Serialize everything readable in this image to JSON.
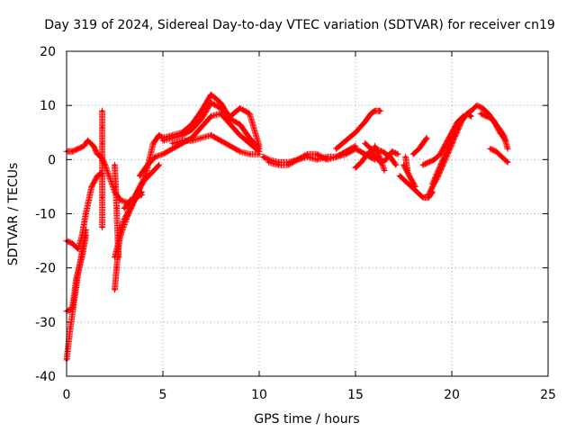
{
  "chart_data": {
    "type": "scatter",
    "title": "Day 319 of 2024, Sidereal Day-to-day VTEC variation (SDTVAR) for receiver cn19",
    "xlabel": "GPS time / hours",
    "ylabel": "SDTVAR / TECUs",
    "xlim": [
      0,
      25
    ],
    "ylim": [
      -40,
      20
    ],
    "xticks": [
      0,
      5,
      10,
      15,
      20,
      25
    ],
    "yticks": [
      -40,
      -30,
      -20,
      -10,
      0,
      10,
      20
    ],
    "grid": true,
    "marker": "+",
    "series_color": "#ff0000",
    "series": [
      {
        "name": "trace-1",
        "x": [
          0.0,
          0.3,
          0.6,
          0.9,
          1.1,
          1.4,
          1.6,
          1.8,
          2.0,
          2.2,
          2.5,
          2.8,
          3.2
        ],
        "y": [
          1.5,
          1.5,
          2.0,
          2.5,
          3.5,
          2.5,
          1.0,
          0.5,
          -1.0,
          -3.0,
          -6.0,
          -7.5,
          -8.0
        ]
      },
      {
        "name": "trace-2",
        "x": [
          0.0,
          0.3,
          0.6,
          0.8,
          1.0,
          1.3,
          1.6,
          1.8
        ],
        "y": [
          -15.0,
          -15.5,
          -16.5,
          -14.0,
          -10.0,
          -5.0,
          -3.0,
          -2.5
        ]
      },
      {
        "name": "trace-3",
        "x": [
          0.0,
          0.2,
          0.4,
          0.6,
          0.8,
          1.0
        ],
        "y": [
          -37.0,
          -31.0,
          -26.0,
          -21.0,
          -17.0,
          -13.0
        ]
      },
      {
        "name": "trace-4",
        "x": [
          0.0,
          0.3,
          0.5,
          0.8,
          1.0
        ],
        "y": [
          -28.0,
          -27.5,
          -22.0,
          -18.0,
          -14.0
        ]
      },
      {
        "name": "trace-5",
        "x": [
          1.85,
          1.85,
          1.85,
          1.85,
          1.85,
          1.85,
          1.85
        ],
        "y": [
          9.0,
          6.0,
          3.0,
          0.0,
          -3.0,
          -7.0,
          -12.5
        ]
      },
      {
        "name": "trace-6",
        "x": [
          2.5,
          2.6,
          2.7,
          2.8,
          3.0,
          3.3,
          3.6,
          3.9
        ],
        "y": [
          -24.0,
          -20.0,
          -16.0,
          -13.0,
          -11.0,
          -9.0,
          -7.0,
          -6.0
        ]
      },
      {
        "name": "trace-7",
        "x": [
          2.5,
          2.55,
          2.6,
          2.65,
          2.7
        ],
        "y": [
          -1.0,
          -5.0,
          -9.0,
          -14.0,
          -18.0
        ]
      },
      {
        "name": "trace-8",
        "x": [
          2.5,
          2.8,
          3.1,
          3.4,
          3.7,
          4.0,
          4.4,
          4.8
        ],
        "y": [
          -18.0,
          -14.0,
          -11.0,
          -8.5,
          -6.0,
          -4.0,
          -2.5,
          -1.0
        ]
      },
      {
        "name": "trace-9",
        "x": [
          3.0,
          3.3,
          3.6,
          3.9
        ],
        "y": [
          -9.0,
          -7.5,
          -7.0,
          -6.5
        ]
      },
      {
        "name": "trace-10",
        "x": [
          3.5,
          3.8,
          4.1,
          4.3,
          4.5,
          4.8,
          5.0,
          5.5,
          6.0,
          6.5,
          7.0,
          7.5,
          8.0,
          8.5,
          9.0,
          9.5,
          10.0
        ],
        "y": [
          -7.0,
          -5.0,
          -3.0,
          0.0,
          3.0,
          4.5,
          4.0,
          4.5,
          5.0,
          6.5,
          9.0,
          12.0,
          10.5,
          7.5,
          6.5,
          4.0,
          2.0
        ]
      },
      {
        "name": "trace-11",
        "x": [
          3.8,
          4.2,
          4.6,
          5.0,
          5.5,
          6.0,
          6.5,
          7.0,
          7.5,
          8.0,
          8.5,
          9.0,
          9.5,
          10.0
        ],
        "y": [
          -3.0,
          -1.0,
          0.5,
          1.0,
          2.0,
          3.0,
          4.0,
          6.0,
          8.0,
          8.5,
          6.5,
          4.5,
          3.0,
          1.5
        ]
      },
      {
        "name": "trace-12",
        "x": [
          5.0,
          5.5,
          6.0,
          6.5,
          7.0,
          7.5,
          8.0,
          8.5,
          9.0,
          9.5,
          10.0
        ],
        "y": [
          3.5,
          4.0,
          4.5,
          5.5,
          7.5,
          10.5,
          9.5,
          8.0,
          9.5,
          8.5,
          2.5
        ]
      },
      {
        "name": "trace-13",
        "x": [
          5.5,
          6.0,
          6.5,
          7.0,
          7.5,
          8.0,
          8.5,
          9.0,
          9.5,
          10.0
        ],
        "y": [
          3.0,
          3.5,
          3.5,
          4.0,
          4.5,
          3.5,
          2.5,
          1.5,
          1.0,
          1.0
        ]
      },
      {
        "name": "trace-14",
        "x": [
          10.2,
          10.5,
          11.0,
          11.5,
          12.0,
          12.5,
          13.0,
          13.5,
          14.0,
          14.5,
          15.0,
          15.5,
          16.0
        ],
        "y": [
          0.5,
          0.0,
          -0.5,
          -0.5,
          0.0,
          0.5,
          0.0,
          0.5,
          0.5,
          1.0,
          2.0,
          1.0,
          0.0
        ]
      },
      {
        "name": "trace-15",
        "x": [
          10.5,
          11.0,
          11.5,
          12.0,
          12.5,
          13.0,
          13.5,
          14.0,
          14.5,
          15.0
        ],
        "y": [
          -0.5,
          -1.0,
          -1.0,
          0.0,
          1.0,
          1.0,
          0.0,
          0.5,
          1.5,
          2.5
        ]
      },
      {
        "name": "trace-16",
        "x": [
          14.0,
          14.5,
          15.0,
          15.5,
          15.8,
          16.0,
          16.3
        ],
        "y": [
          2.0,
          3.5,
          5.0,
          7.0,
          8.5,
          9.0,
          9.0
        ]
      },
      {
        "name": "trace-17",
        "x": [
          15.0,
          15.3,
          15.6,
          16.0,
          16.4,
          16.8,
          17.1
        ],
        "y": [
          -1.5,
          -0.5,
          1.0,
          2.0,
          1.5,
          0.5,
          -1.0
        ]
      },
      {
        "name": "trace-18",
        "x": [
          15.5,
          15.8,
          16.0,
          16.3,
          16.6,
          16.9,
          17.2
        ],
        "y": [
          3.0,
          2.0,
          0.5,
          -0.5,
          0.0,
          1.5,
          1.0
        ]
      },
      {
        "name": "trace-19",
        "x": [
          16.0,
          16.3,
          16.5
        ],
        "y": [
          2.5,
          0.0,
          -2.0
        ]
      },
      {
        "name": "trace-20",
        "x": [
          17.5,
          17.8,
          18.1
        ],
        "y": [
          -1.0,
          -3.0,
          -5.0
        ]
      },
      {
        "name": "trace-21",
        "x": [
          17.6,
          17.7
        ],
        "y": [
          0.5,
          -2.0
        ]
      },
      {
        "name": "trace-22",
        "x": [
          17.3,
          17.6,
          17.9,
          18.2,
          18.5,
          18.8,
          19.0
        ],
        "y": [
          -3.0,
          -4.0,
          -5.0,
          -6.0,
          -7.0,
          -7.0,
          -6.0
        ]
      },
      {
        "name": "trace-23",
        "x": [
          18.0,
          18.3,
          18.5,
          18.7
        ],
        "y": [
          1.0,
          2.0,
          3.0,
          4.0
        ]
      },
      {
        "name": "trace-24",
        "x": [
          18.8,
          19.0,
          19.3,
          19.6,
          19.9,
          20.2,
          20.5,
          20.8,
          21.0
        ],
        "y": [
          -6.5,
          -5.0,
          -3.0,
          -0.5,
          2.0,
          4.5,
          7.0,
          8.5,
          9.0
        ]
      },
      {
        "name": "trace-25",
        "x": [
          19.0,
          19.3,
          19.6,
          19.9,
          20.2,
          20.5,
          20.8,
          21.0
        ],
        "y": [
          -4.5,
          -2.0,
          0.5,
          3.0,
          5.5,
          7.5,
          8.5,
          8.0
        ]
      },
      {
        "name": "trace-26",
        "x": [
          18.5,
          18.8,
          19.1,
          19.4,
          19.7,
          20.0,
          20.3,
          20.6
        ],
        "y": [
          -1.0,
          -0.5,
          0.0,
          1.0,
          3.0,
          5.0,
          7.0,
          8.0
        ]
      },
      {
        "name": "trace-27",
        "x": [
          21.0,
          21.3,
          21.6,
          21.9,
          22.2,
          22.5,
          22.8
        ],
        "y": [
          9.0,
          10.0,
          9.5,
          8.5,
          7.0,
          5.0,
          3.5
        ]
      },
      {
        "name": "trace-28",
        "x": [
          21.5,
          21.8,
          22.1,
          22.4,
          22.7,
          22.9
        ],
        "y": [
          8.5,
          8.0,
          7.5,
          6.0,
          4.5,
          2.0
        ]
      },
      {
        "name": "trace-29",
        "x": [
          22.0,
          22.3,
          22.6,
          22.9
        ],
        "y": [
          2.0,
          1.5,
          0.5,
          -0.5
        ]
      }
    ]
  }
}
